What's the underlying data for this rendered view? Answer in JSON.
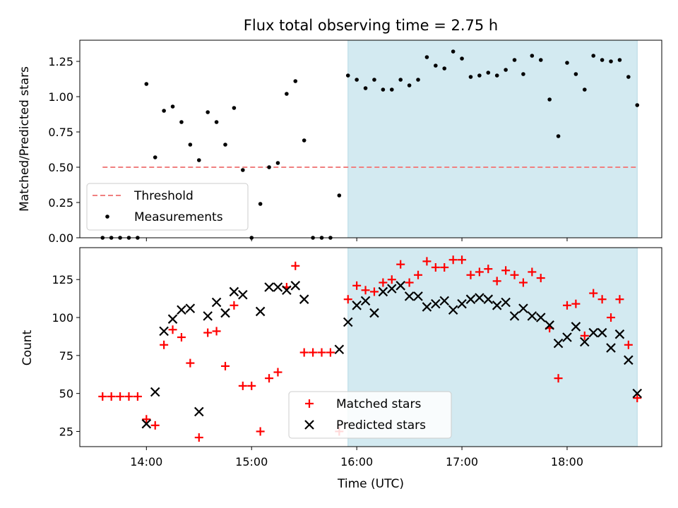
{
  "chart_data": [
    {
      "type": "scatter",
      "title": "Flux total observing time = 2.75 h",
      "xlabel": "",
      "ylabel": "Matched/Predicted stars",
      "xlim": [
        "13:22",
        "18:54"
      ],
      "ylim": [
        0,
        1.4
      ],
      "yticks": [
        0.0,
        0.25,
        0.5,
        0.75,
        1.0,
        1.25
      ],
      "ytick_labels": [
        "0.00",
        "0.25",
        "0.50",
        "0.75",
        "1.00",
        "1.25"
      ],
      "shaded_span": {
        "x0": "15:55",
        "x1": "18:40",
        "color": "#d3eaf1"
      },
      "threshold": {
        "y": 0.5,
        "x0": "13:35",
        "x1": "18:40",
        "color": "#f08080"
      },
      "legend": {
        "position": "lower-left",
        "entries": [
          "Threshold",
          "Measurements"
        ]
      },
      "series": [
        {
          "name": "Measurements",
          "marker": "dot",
          "color": "#000000",
          "points": [
            [
              "13:35",
              0
            ],
            [
              "13:40",
              0
            ],
            [
              "13:45",
              0
            ],
            [
              "13:50",
              0
            ],
            [
              "13:55",
              0
            ],
            [
              "14:00",
              1.09
            ],
            [
              "14:05",
              0.57
            ],
            [
              "14:10",
              0.9
            ],
            [
              "14:15",
              0.93
            ],
            [
              "14:20",
              0.82
            ],
            [
              "14:25",
              0.66
            ],
            [
              "14:30",
              0.55
            ],
            [
              "14:35",
              0.89
            ],
            [
              "14:40",
              0.82
            ],
            [
              "14:45",
              0.66
            ],
            [
              "14:50",
              0.92
            ],
            [
              "14:55",
              0.48
            ],
            [
              "15:00",
              0
            ],
            [
              "15:05",
              0.24
            ],
            [
              "15:10",
              0.5
            ],
            [
              "15:15",
              0.53
            ],
            [
              "15:20",
              1.02
            ],
            [
              "15:25",
              1.11
            ],
            [
              "15:30",
              0.69
            ],
            [
              "15:35",
              0
            ],
            [
              "15:40",
              0
            ],
            [
              "15:45",
              0
            ],
            [
              "15:50",
              0.3
            ],
            [
              "15:55",
              1.15
            ],
            [
              "16:00",
              1.12
            ],
            [
              "16:05",
              1.06
            ],
            [
              "16:10",
              1.12
            ],
            [
              "16:15",
              1.05
            ],
            [
              "16:20",
              1.05
            ],
            [
              "16:25",
              1.12
            ],
            [
              "16:30",
              1.08
            ],
            [
              "16:35",
              1.12
            ],
            [
              "16:40",
              1.28
            ],
            [
              "16:45",
              1.22
            ],
            [
              "16:50",
              1.2
            ],
            [
              "16:55",
              1.32
            ],
            [
              "17:00",
              1.27
            ],
            [
              "17:05",
              1.14
            ],
            [
              "17:10",
              1.15
            ],
            [
              "17:15",
              1.17
            ],
            [
              "17:20",
              1.15
            ],
            [
              "17:25",
              1.19
            ],
            [
              "17:30",
              1.26
            ],
            [
              "17:35",
              1.16
            ],
            [
              "17:40",
              1.29
            ],
            [
              "17:45",
              1.26
            ],
            [
              "17:50",
              0.98
            ],
            [
              "17:55",
              0.72
            ],
            [
              "18:00",
              1.24
            ],
            [
              "18:05",
              1.16
            ],
            [
              "18:10",
              1.05
            ],
            [
              "18:15",
              1.29
            ],
            [
              "18:20",
              1.26
            ],
            [
              "18:25",
              1.25
            ],
            [
              "18:30",
              1.26
            ],
            [
              "18:35",
              1.14
            ],
            [
              "18:40",
              0.94
            ]
          ]
        }
      ]
    },
    {
      "type": "scatter",
      "title": "",
      "xlabel": "Time (UTC)",
      "ylabel": "Count",
      "xlim": [
        "13:22",
        "18:54"
      ],
      "ylim": [
        15,
        146
      ],
      "xticks": [
        "14:00",
        "15:00",
        "16:00",
        "17:00",
        "18:00"
      ],
      "xtick_labels": [
        "14:00",
        "15:00",
        "16:00",
        "17:00",
        "18:00"
      ],
      "yticks": [
        25,
        50,
        75,
        100,
        125
      ],
      "ytick_labels": [
        "25",
        "50",
        "75",
        "100",
        "125"
      ],
      "shaded_span": {
        "x0": "15:55",
        "x1": "18:40",
        "color": "#d3eaf1"
      },
      "legend": {
        "position": "lower-center",
        "entries": [
          "Matched stars",
          "Predicted stars"
        ]
      },
      "series": [
        {
          "name": "Matched stars",
          "marker": "plus",
          "color": "#ff0000",
          "points": [
            [
              "13:35",
              48
            ],
            [
              "13:40",
              48
            ],
            [
              "13:45",
              48
            ],
            [
              "13:50",
              48
            ],
            [
              "13:55",
              48
            ],
            [
              "14:00",
              33
            ],
            [
              "14:05",
              29
            ],
            [
              "14:10",
              82
            ],
            [
              "14:15",
              92
            ],
            [
              "14:20",
              87
            ],
            [
              "14:25",
              70
            ],
            [
              "14:30",
              21
            ],
            [
              "14:35",
              90
            ],
            [
              "14:40",
              91
            ],
            [
              "14:45",
              68
            ],
            [
              "14:50",
              108
            ],
            [
              "14:55",
              55
            ],
            [
              "15:00",
              55
            ],
            [
              "15:05",
              25
            ],
            [
              "15:10",
              60
            ],
            [
              "15:15",
              64
            ],
            [
              "15:20",
              120
            ],
            [
              "15:25",
              134
            ],
            [
              "15:30",
              77
            ],
            [
              "15:35",
              77
            ],
            [
              "15:40",
              77
            ],
            [
              "15:45",
              77
            ],
            [
              "15:50",
              25
            ],
            [
              "15:55",
              112
            ],
            [
              "16:00",
              121
            ],
            [
              "16:05",
              118
            ],
            [
              "16:10",
              117
            ],
            [
              "16:15",
              123
            ],
            [
              "16:20",
              125
            ],
            [
              "16:25",
              135
            ],
            [
              "16:30",
              123
            ],
            [
              "16:35",
              128
            ],
            [
              "16:40",
              137
            ],
            [
              "16:45",
              133
            ],
            [
              "16:50",
              133
            ],
            [
              "16:55",
              138
            ],
            [
              "17:00",
              138
            ],
            [
              "17:05",
              128
            ],
            [
              "17:10",
              130
            ],
            [
              "17:15",
              132
            ],
            [
              "17:20",
              124
            ],
            [
              "17:25",
              131
            ],
            [
              "17:30",
              128
            ],
            [
              "17:35",
              123
            ],
            [
              "17:40",
              130
            ],
            [
              "17:45",
              126
            ],
            [
              "17:50",
              93
            ],
            [
              "17:55",
              60
            ],
            [
              "18:00",
              108
            ],
            [
              "18:05",
              109
            ],
            [
              "18:10",
              88
            ],
            [
              "18:15",
              116
            ],
            [
              "18:20",
              112
            ],
            [
              "18:25",
              100
            ],
            [
              "18:30",
              112
            ],
            [
              "18:35",
              82
            ],
            [
              "18:40",
              47
            ]
          ]
        },
        {
          "name": "Predicted stars",
          "marker": "x",
          "color": "#000000",
          "points": [
            [
              "14:00",
              30
            ],
            [
              "14:05",
              51
            ],
            [
              "14:10",
              91
            ],
            [
              "14:15",
              99
            ],
            [
              "14:20",
              105
            ],
            [
              "14:25",
              106
            ],
            [
              "14:30",
              38
            ],
            [
              "14:35",
              101
            ],
            [
              "14:40",
              110
            ],
            [
              "14:45",
              103
            ],
            [
              "14:50",
              117
            ],
            [
              "14:55",
              115
            ],
            [
              "15:05",
              104
            ],
            [
              "15:10",
              120
            ],
            [
              "15:15",
              120
            ],
            [
              "15:20",
              118
            ],
            [
              "15:25",
              121
            ],
            [
              "15:30",
              112
            ],
            [
              "15:50",
              79
            ],
            [
              "15:55",
              97
            ],
            [
              "16:00",
              108
            ],
            [
              "16:05",
              111
            ],
            [
              "16:10",
              103
            ],
            [
              "16:15",
              117
            ],
            [
              "16:20",
              119
            ],
            [
              "16:25",
              121
            ],
            [
              "16:30",
              114
            ],
            [
              "16:35",
              114
            ],
            [
              "16:40",
              107
            ],
            [
              "16:45",
              109
            ],
            [
              "16:50",
              111
            ],
            [
              "16:55",
              105
            ],
            [
              "17:00",
              109
            ],
            [
              "17:05",
              112
            ],
            [
              "17:10",
              113
            ],
            [
              "17:15",
              112
            ],
            [
              "17:20",
              108
            ],
            [
              "17:25",
              110
            ],
            [
              "17:30",
              101
            ],
            [
              "17:35",
              106
            ],
            [
              "17:40",
              101
            ],
            [
              "17:45",
              100
            ],
            [
              "17:50",
              95
            ],
            [
              "17:55",
              83
            ],
            [
              "18:00",
              87
            ],
            [
              "18:05",
              94
            ],
            [
              "18:10",
              84
            ],
            [
              "18:15",
              90
            ],
            [
              "18:20",
              90
            ],
            [
              "18:25",
              80
            ],
            [
              "18:30",
              89
            ],
            [
              "18:35",
              72
            ],
            [
              "18:40",
              50
            ]
          ]
        }
      ]
    }
  ]
}
